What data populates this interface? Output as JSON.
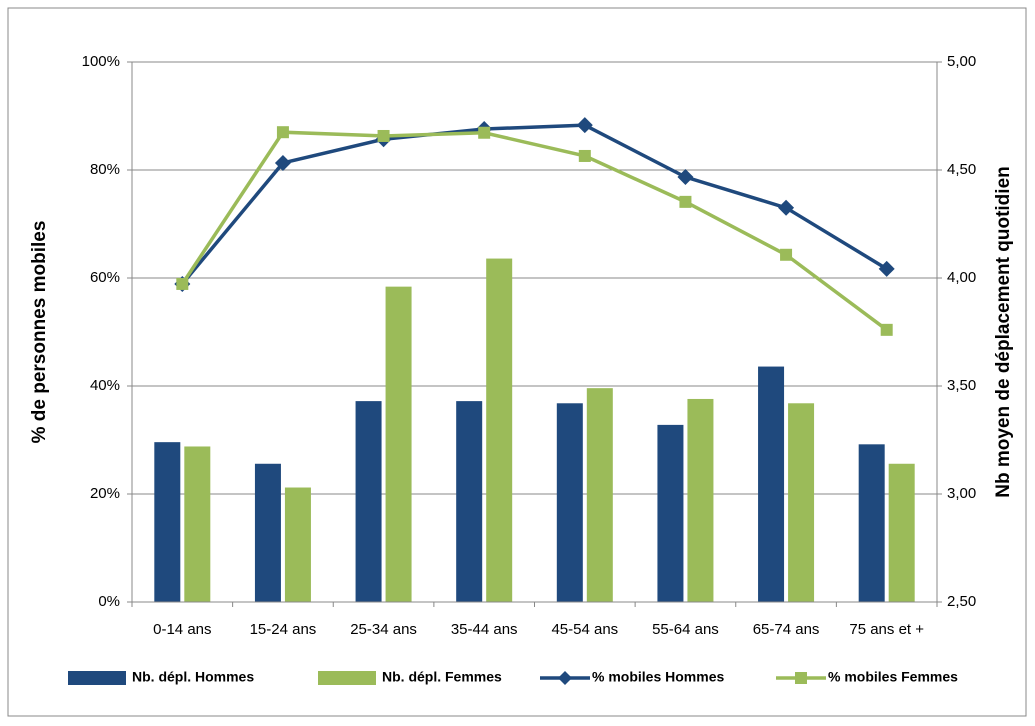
{
  "chart_data": {
    "type": "bar-line",
    "ylabel": "% de personnes mobiles",
    "y2label": "Nb moyen de déplacement quotidien",
    "categories": [
      "0-14 ans",
      "15-24 ans",
      "25-34 ans",
      "35-44 ans",
      "45-54 ans",
      "55-64 ans",
      "65-74 ans",
      "75 ans et +"
    ],
    "series": [
      {
        "name": "Nb. dépl. Hommes",
        "type": "bar",
        "axis": "y2",
        "color": "#1f497d",
        "values": [
          3.24,
          3.14,
          3.43,
          3.43,
          3.42,
          3.32,
          3.59,
          3.23
        ]
      },
      {
        "name": "Nb. dépl. Femmes",
        "type": "bar",
        "axis": "y2",
        "color": "#9bbb59",
        "values": [
          3.22,
          3.03,
          3.96,
          4.09,
          3.49,
          3.44,
          3.42,
          3.14
        ]
      },
      {
        "name": "% mobiles Hommes",
        "type": "line",
        "marker": "diamond",
        "color": "#1f497d",
        "values": [
          58.9,
          81.3,
          85.7,
          87.6,
          88.3,
          78.7,
          73.0,
          61.7
        ]
      },
      {
        "name": "% mobiles Femmes",
        "type": "line",
        "marker": "square",
        "color": "#9bbb59",
        "values": [
          58.9,
          87.0,
          86.3,
          86.9,
          82.6,
          74.1,
          64.3,
          50.4
        ]
      }
    ],
    "ylim": [
      0,
      100
    ],
    "yticks": [
      {
        "value": 0,
        "label": "0%"
      },
      {
        "value": 20,
        "label": "20%"
      },
      {
        "value": 40,
        "label": "40%"
      },
      {
        "value": 60,
        "label": "60%"
      },
      {
        "value": 80,
        "label": "80%"
      },
      {
        "value": 100,
        "label": "100%"
      }
    ],
    "y2lim": [
      2.5,
      5.0
    ],
    "y2ticks": [
      {
        "value": 2.5,
        "label": "2,50"
      },
      {
        "value": 3.0,
        "label": "3,00"
      },
      {
        "value": 3.5,
        "label": "3,50"
      },
      {
        "value": 4.0,
        "label": "4,00"
      },
      {
        "value": 4.5,
        "label": "4,50"
      },
      {
        "value": 5.0,
        "label": "5,00"
      }
    ],
    "grid": true,
    "legend": "bottom"
  }
}
